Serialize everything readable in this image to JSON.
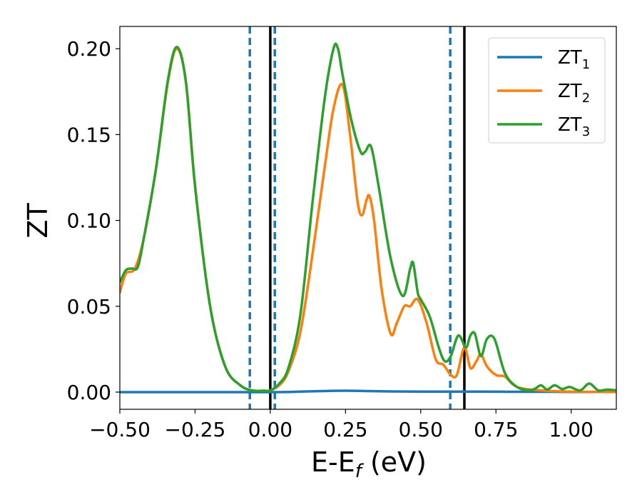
{
  "chart_data": {
    "type": "line",
    "title": "",
    "xlabel": {
      "main": "E-E",
      "sub": "f",
      "suffix": " (eV)"
    },
    "ylabel": "ZT",
    "xlim": [
      -0.5,
      1.15
    ],
    "ylim": [
      -0.01,
      0.213
    ],
    "xticks": [
      -0.5,
      -0.25,
      0.0,
      0.25,
      0.5,
      0.75,
      1.0
    ],
    "xtick_labels": [
      "−0.50",
      "−0.25",
      "0.00",
      "0.25",
      "0.50",
      "0.75",
      "1.00"
    ],
    "yticks": [
      0.0,
      0.05,
      0.1,
      0.15,
      0.2
    ],
    "ytick_labels": [
      "0.00",
      "0.05",
      "0.10",
      "0.15",
      "0.20"
    ],
    "grid": false,
    "legend_position": "top-right",
    "vlines": [
      {
        "x": 0.0,
        "style": "solid",
        "color": "#000000"
      },
      {
        "x": 0.645,
        "style": "solid",
        "color": "#000000"
      },
      {
        "x": -0.068,
        "style": "dashed",
        "color": "#1f77b4"
      },
      {
        "x": 0.015,
        "style": "dashed",
        "color": "#1f77b4"
      },
      {
        "x": 0.598,
        "style": "dashed",
        "color": "#1f77b4"
      }
    ],
    "series": [
      {
        "name": "ZT",
        "sub": "1",
        "color": "#1f77b4",
        "x": [
          -0.5,
          0.0,
          0.1,
          0.2,
          0.25,
          0.3,
          0.4,
          0.5,
          0.6,
          0.65,
          0.7,
          0.8,
          0.9,
          1.0,
          1.15
        ],
        "y": [
          0.0,
          0.0,
          0.0003,
          0.0007,
          0.0008,
          0.0007,
          0.0004,
          0.0003,
          0.0003,
          0.0003,
          0.0003,
          0.0002,
          0.0002,
          0.0001,
          0.0001
        ]
      },
      {
        "name": "ZT",
        "sub": "2",
        "color": "#ff7f0e",
        "x": [
          -0.5,
          -0.48,
          -0.45,
          -0.42,
          -0.38,
          -0.34,
          -0.31,
          -0.28,
          -0.25,
          -0.2,
          -0.15,
          -0.1,
          -0.06,
          -0.02,
          0.0,
          0.03,
          0.06,
          0.1,
          0.14,
          0.18,
          0.21,
          0.24,
          0.265,
          0.29,
          0.305,
          0.32,
          0.33,
          0.345,
          0.37,
          0.4,
          0.42,
          0.445,
          0.465,
          0.49,
          0.52,
          0.55,
          0.575,
          0.6,
          0.62,
          0.645,
          0.665,
          0.685,
          0.7,
          0.72,
          0.75,
          0.78,
          0.82,
          0.9,
          1.0,
          1.15
        ],
        "y": [
          0.058,
          0.069,
          0.072,
          0.09,
          0.13,
          0.181,
          0.2,
          0.18,
          0.12,
          0.05,
          0.015,
          0.004,
          0.001,
          0.0008,
          0.001,
          0.004,
          0.012,
          0.035,
          0.08,
          0.13,
          0.165,
          0.179,
          0.15,
          0.111,
          0.103,
          0.112,
          0.114,
          0.1,
          0.06,
          0.034,
          0.04,
          0.05,
          0.05,
          0.054,
          0.04,
          0.019,
          0.016,
          0.01,
          0.01,
          0.026,
          0.014,
          0.018,
          0.022,
          0.015,
          0.01,
          0.009,
          0.003,
          0.001,
          0.0003,
          0.0001
        ]
      },
      {
        "name": "ZT",
        "sub": "3",
        "color": "#2ca02c",
        "x": [
          -0.5,
          -0.48,
          -0.46,
          -0.44,
          -0.42,
          -0.38,
          -0.34,
          -0.31,
          -0.28,
          -0.25,
          -0.2,
          -0.15,
          -0.1,
          -0.06,
          -0.02,
          0.0,
          0.03,
          0.06,
          0.1,
          0.14,
          0.18,
          0.21,
          0.225,
          0.24,
          0.27,
          0.3,
          0.315,
          0.335,
          0.36,
          0.4,
          0.44,
          0.465,
          0.475,
          0.49,
          0.5,
          0.53,
          0.56,
          0.58,
          0.6,
          0.625,
          0.65,
          0.665,
          0.68,
          0.7,
          0.72,
          0.745,
          0.78,
          0.82,
          0.86,
          0.88,
          0.9,
          0.92,
          0.945,
          0.97,
          0.995,
          1.03,
          1.06,
          1.09,
          1.12,
          1.15
        ],
        "y": [
          0.064,
          0.071,
          0.072,
          0.073,
          0.09,
          0.13,
          0.182,
          0.201,
          0.18,
          0.12,
          0.05,
          0.015,
          0.004,
          0.001,
          0.0008,
          0.001,
          0.005,
          0.014,
          0.045,
          0.11,
          0.17,
          0.2,
          0.2,
          0.185,
          0.158,
          0.14,
          0.14,
          0.143,
          0.12,
          0.078,
          0.056,
          0.072,
          0.075,
          0.058,
          0.054,
          0.044,
          0.026,
          0.018,
          0.021,
          0.033,
          0.026,
          0.033,
          0.034,
          0.021,
          0.031,
          0.031,
          0.011,
          0.003,
          0.001,
          0.002,
          0.004,
          0.0015,
          0.004,
          0.0018,
          0.003,
          0.001,
          0.005,
          0.001,
          0.0015,
          0.001
        ]
      }
    ]
  }
}
